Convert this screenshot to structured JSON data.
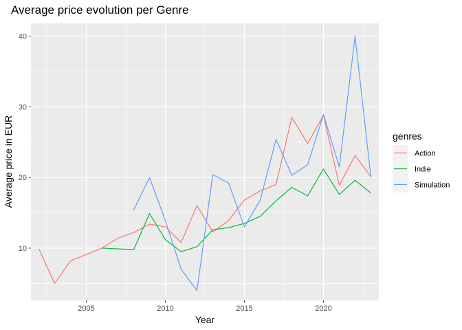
{
  "chart_data": {
    "type": "line",
    "title": "Average price evolution per Genre",
    "xlabel": "Year",
    "ylabel": "Average price in EUR",
    "xlim": [
      2001.5,
      2023.5
    ],
    "ylim": [
      2.6,
      41.8
    ],
    "x_ticks": [
      2005,
      2010,
      2015,
      2020
    ],
    "x_tick_labels": [
      "2005",
      "2010",
      "2015",
      "2020"
    ],
    "y_ticks": [
      10,
      20,
      30,
      40
    ],
    "y_tick_labels": [
      "10",
      "20",
      "30",
      "40"
    ],
    "grid": true,
    "legend": {
      "title": "genres",
      "position": "right"
    },
    "series": [
      {
        "name": "Action",
        "color": "#F8766D",
        "points": [
          [
            2002,
            9.9
          ],
          [
            2003,
            5.0
          ],
          [
            2004,
            8.2
          ],
          [
            2005,
            9.1
          ],
          [
            2006,
            10.0
          ],
          [
            2007,
            11.4
          ],
          [
            2008,
            12.2
          ],
          [
            2009,
            13.4
          ],
          [
            2010,
            13.0
          ],
          [
            2011,
            10.8
          ],
          [
            2012,
            16.0
          ],
          [
            2013,
            12.3
          ],
          [
            2014,
            13.9
          ],
          [
            2015,
            16.8
          ],
          [
            2016,
            18.1
          ],
          [
            2017,
            19.0
          ],
          [
            2018,
            28.5
          ],
          [
            2019,
            24.8
          ],
          [
            2020,
            28.8
          ],
          [
            2021,
            18.9
          ],
          [
            2022,
            23.1
          ],
          [
            2023,
            20.1
          ]
        ]
      },
      {
        "name": "Indie",
        "color": "#00BA38",
        "points": [
          [
            2006,
            10.0
          ],
          [
            2008,
            9.8
          ],
          [
            2009,
            14.9
          ],
          [
            2010,
            11.2
          ],
          [
            2011,
            9.5
          ],
          [
            2012,
            10.2
          ],
          [
            2013,
            12.6
          ],
          [
            2014,
            12.9
          ],
          [
            2015,
            13.5
          ],
          [
            2016,
            14.5
          ],
          [
            2017,
            16.7
          ],
          [
            2018,
            18.6
          ],
          [
            2019,
            17.4
          ],
          [
            2020,
            21.2
          ],
          [
            2021,
            17.6
          ],
          [
            2022,
            19.6
          ],
          [
            2023,
            17.8
          ]
        ]
      },
      {
        "name": "Simulation",
        "color": "#619CFF",
        "points": [
          [
            2008,
            15.4
          ],
          [
            2009,
            20.0
          ],
          [
            2010,
            13.9
          ],
          [
            2011,
            7.0
          ],
          [
            2012,
            4.0
          ],
          [
            2013,
            20.4
          ],
          [
            2014,
            19.2
          ],
          [
            2015,
            13.0
          ],
          [
            2016,
            16.8
          ],
          [
            2017,
            25.4
          ],
          [
            2018,
            20.3
          ],
          [
            2019,
            21.8
          ],
          [
            2020,
            28.9
          ],
          [
            2021,
            21.5
          ],
          [
            2022,
            40.0
          ],
          [
            2023,
            20.0
          ]
        ]
      }
    ]
  }
}
